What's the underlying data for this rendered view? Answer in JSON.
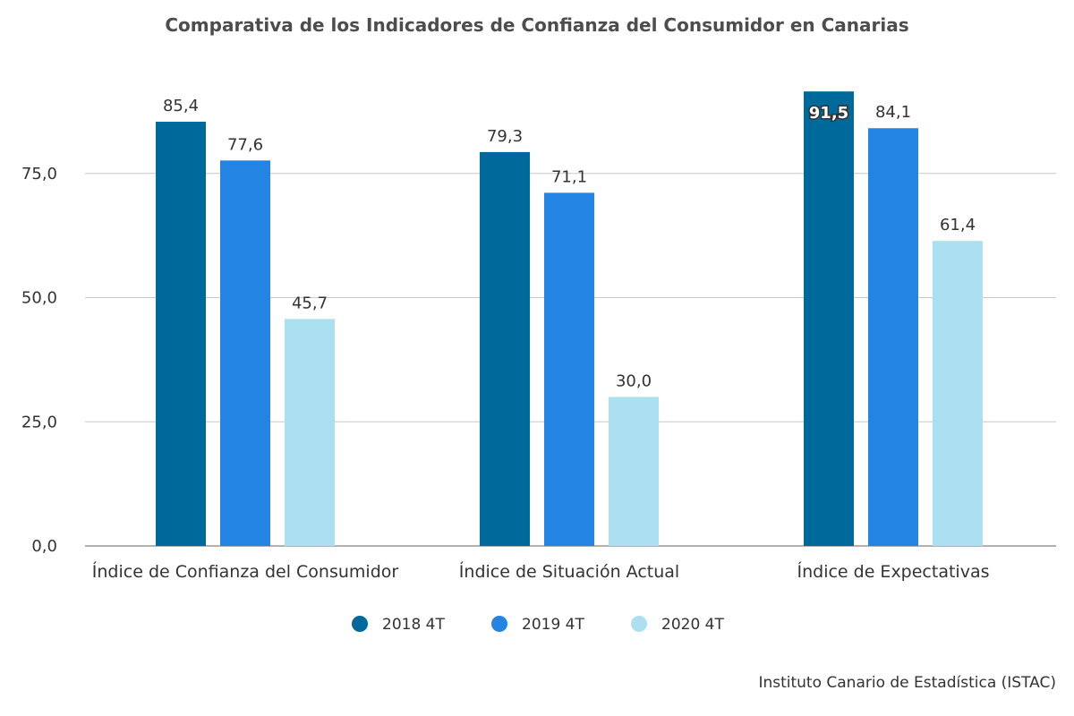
{
  "chart_data": {
    "type": "bar",
    "title": "Comparativa de los Indicadores de Confianza del Consumidor en Canarias",
    "categories": [
      "Índice de Confianza del Consumidor",
      "Índice de Situación Actual",
      "Índice de Expectativas"
    ],
    "series": [
      {
        "name": "2018 4T",
        "color": "#00699b",
        "values": [
          85.4,
          79.3,
          91.5
        ],
        "labels": [
          "85,4",
          "79,3",
          "91,5"
        ]
      },
      {
        "name": "2019 4T",
        "color": "#2484e3",
        "values": [
          77.6,
          71.1,
          84.1
        ],
        "labels": [
          "77,6",
          "71,1",
          "84,1"
        ]
      },
      {
        "name": "2020 4T",
        "color": "#abe0f0",
        "values": [
          45.7,
          30.0,
          61.4
        ],
        "labels": [
          "45,7",
          "30,0",
          "61,4"
        ]
      }
    ],
    "y_ticks": [
      {
        "value": 0,
        "label": "0,0"
      },
      {
        "value": 25,
        "label": "25,0"
      },
      {
        "value": 50,
        "label": "50,0"
      },
      {
        "value": 75,
        "label": "75,0"
      }
    ],
    "ylim": [
      0,
      100
    ],
    "grid": true,
    "legend_position": "bottom",
    "credits": "Instituto Canario de Estadística (ISTAC)"
  }
}
